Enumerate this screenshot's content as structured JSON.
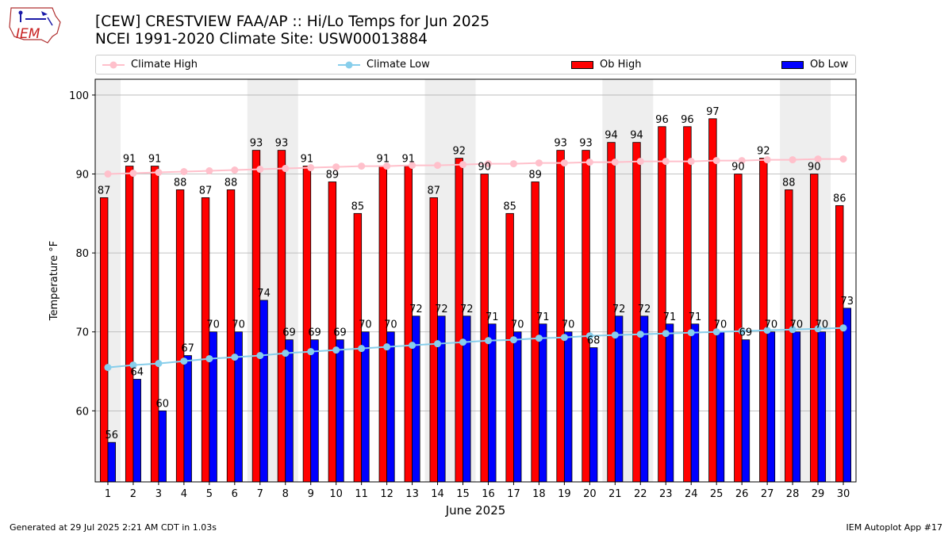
{
  "header": {
    "logo_text": "IEM",
    "title_line1": "[CEW] CRESTVIEW FAA/AP :: Hi/Lo Temps for Jun 2025",
    "title_line2": "NCEI 1991-2020 Climate Site: USW00013884"
  },
  "legend": {
    "climate_high": "Climate High",
    "climate_low": "Climate Low",
    "ob_high": "Ob High",
    "ob_low": "Ob Low"
  },
  "colors": {
    "ob_high": "#ff0000",
    "ob_low": "#0000ff",
    "climate_high": "#ffc0cb",
    "climate_low": "#87ceeb",
    "weekend_band": "#eeeeee",
    "grid": "#b0b0b0"
  },
  "footer": {
    "generated": "Generated at 29 Jul 2025 2:21 AM CDT in 1.03s",
    "app": "IEM Autoplot App #17"
  },
  "chart_data": {
    "type": "bar",
    "xlabel": "June 2025",
    "ylabel": "Temperature °F",
    "ylim": [
      51,
      102
    ],
    "yticks": [
      60,
      70,
      80,
      90,
      100
    ],
    "grid": true,
    "legend_position": "top",
    "categories": [
      "1",
      "2",
      "3",
      "4",
      "5",
      "6",
      "7",
      "8",
      "9",
      "10",
      "11",
      "12",
      "13",
      "14",
      "15",
      "16",
      "17",
      "18",
      "19",
      "20",
      "21",
      "22",
      "23",
      "24",
      "25",
      "26",
      "27",
      "28",
      "29",
      "30"
    ],
    "weekend_spans": [
      [
        1,
        1
      ],
      [
        7,
        8
      ],
      [
        14,
        15
      ],
      [
        21,
        22
      ],
      [
        28,
        29
      ]
    ],
    "series": [
      {
        "name": "Ob High",
        "kind": "bar",
        "values": [
          87,
          91,
          91,
          88,
          87,
          88,
          93,
          93,
          91,
          89,
          85,
          91,
          91,
          87,
          92,
          90,
          85,
          89,
          93,
          93,
          94,
          94,
          96,
          96,
          97,
          90,
          92,
          88,
          90,
          86
        ]
      },
      {
        "name": "Ob Low",
        "kind": "bar",
        "values": [
          56,
          64,
          60,
          67,
          70,
          70,
          74,
          69,
          69,
          69,
          70,
          70,
          72,
          72,
          72,
          71,
          70,
          71,
          70,
          68,
          72,
          72,
          71,
          71,
          70,
          69,
          70,
          70,
          70,
          73
        ]
      },
      {
        "name": "Climate High",
        "kind": "line",
        "values": [
          90.0,
          90.1,
          90.2,
          90.3,
          90.4,
          90.5,
          90.6,
          90.7,
          90.8,
          90.9,
          91.0,
          91.0,
          91.1,
          91.1,
          91.2,
          91.3,
          91.3,
          91.4,
          91.4,
          91.5,
          91.5,
          91.6,
          91.6,
          91.6,
          91.7,
          91.7,
          91.8,
          91.8,
          91.9,
          91.9
        ]
      },
      {
        "name": "Climate Low",
        "kind": "line",
        "values": [
          65.5,
          65.8,
          66.0,
          66.3,
          66.6,
          66.8,
          67.0,
          67.3,
          67.5,
          67.7,
          67.9,
          68.1,
          68.3,
          68.5,
          68.7,
          68.9,
          69.0,
          69.2,
          69.3,
          69.5,
          69.6,
          69.7,
          69.8,
          69.9,
          70.0,
          70.1,
          70.2,
          70.3,
          70.4,
          70.5
        ]
      }
    ]
  }
}
